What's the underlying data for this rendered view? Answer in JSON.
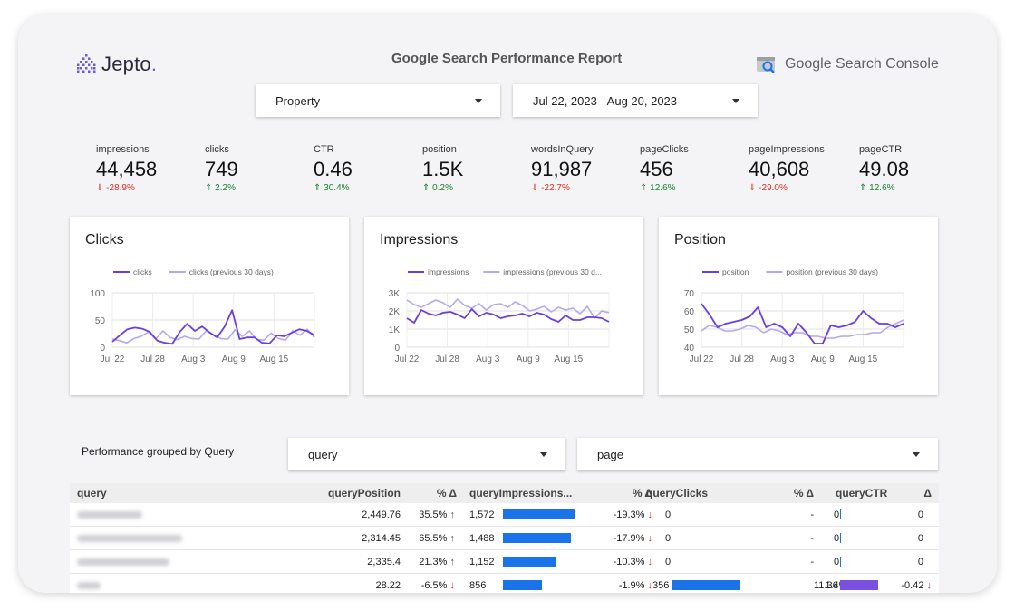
{
  "header": {
    "brand": "Jepto",
    "title": "Google Search Performance Report",
    "gsc_label": "Google Search Console"
  },
  "filters": {
    "property": "Property",
    "date_range": "Jul 22, 2023 - Aug 20, 2023",
    "group_by_label": "Performance grouped by Query",
    "dimension1": "query",
    "dimension2": "page"
  },
  "kpis": [
    {
      "label": "impressions",
      "value": "44,458",
      "delta": "-28.9%",
      "dir": "down"
    },
    {
      "label": "clicks",
      "value": "749",
      "delta": "2.2%",
      "dir": "up"
    },
    {
      "label": "CTR",
      "value": "0.46",
      "delta": "30.4%",
      "dir": "up"
    },
    {
      "label": "position",
      "value": "1.5K",
      "delta": "0.2%",
      "dir": "up"
    },
    {
      "label": "wordsInQuery",
      "value": "91,987",
      "delta": "-22.7%",
      "dir": "down"
    },
    {
      "label": "pageClicks",
      "value": "456",
      "delta": "12.6%",
      "dir": "up"
    },
    {
      "label": "pageImpressions",
      "value": "40,608",
      "delta": "-29.0%",
      "dir": "down"
    },
    {
      "label": "pageCTR",
      "value": "49.08",
      "delta": "12.6%",
      "dir": "up"
    }
  ],
  "colors": {
    "current": "#6a3de8",
    "previous": "#b4a7f5",
    "bar_blue": "#1a73e8",
    "bar_purple": "#7b4fe0",
    "down": "#d93025",
    "up": "#188038"
  },
  "chart_data": [
    {
      "type": "line",
      "title": "Clicks",
      "x_ticks": [
        "Jul 22",
        "Jul 28",
        "Aug 3",
        "Aug 9",
        "Aug 15"
      ],
      "y_ticks": [
        "100",
        "50",
        "0"
      ],
      "ylim": [
        0,
        100
      ],
      "series": [
        {
          "name": "clicks",
          "values": [
            10,
            22,
            33,
            36,
            34,
            28,
            12,
            8,
            6,
            28,
            43,
            30,
            38,
            27,
            18,
            38,
            68,
            15,
            18,
            18,
            8,
            7,
            22,
            20,
            27,
            33,
            30,
            22
          ]
        },
        {
          "name": "clicks (previous 30 days)",
          "values": [
            15,
            12,
            8,
            16,
            20,
            28,
            15,
            30,
            18,
            14,
            20,
            16,
            15,
            30,
            23,
            16,
            15,
            32,
            20,
            30,
            14,
            13,
            26,
            16,
            13,
            30,
            22,
            33,
            18
          ]
        }
      ]
    },
    {
      "type": "line",
      "title": "Impressions",
      "x_ticks": [
        "Jul 22",
        "Jul 28",
        "Aug 3",
        "Aug 9",
        "Aug 15"
      ],
      "y_ticks": [
        "3K",
        "2K",
        "1K",
        "0"
      ],
      "ylim": [
        0,
        3000
      ],
      "series": [
        {
          "name": "impressions",
          "values": [
            1600,
            1350,
            2050,
            1850,
            1750,
            1900,
            1950,
            1800,
            1600,
            2100,
            1700,
            1900,
            1800,
            1600,
            1700,
            1750,
            1850,
            1700,
            1900,
            1800,
            1550,
            1400,
            1750,
            1500,
            1500,
            1650,
            1650,
            1600,
            1400
          ]
        },
        {
          "name": "impressions (previous 30 d...",
          "values": [
            2600,
            2350,
            2200,
            2400,
            2600,
            2450,
            2200,
            2650,
            2300,
            2150,
            2400,
            2050,
            2350,
            2400,
            2200,
            2500,
            2300,
            2000,
            2100,
            2250,
            1950,
            2200,
            2050,
            2150,
            1850,
            2250,
            1600,
            2000,
            1900
          ]
        }
      ]
    },
    {
      "type": "line",
      "title": "Position",
      "x_ticks": [
        "Jul 22",
        "Jul 28",
        "Aug 3",
        "Aug 9",
        "Aug 15"
      ],
      "y_ticks": [
        "70",
        "60",
        "50",
        "40"
      ],
      "ylim": [
        40,
        70
      ],
      "series": [
        {
          "name": "position",
          "values": [
            64,
            58,
            51,
            53,
            54,
            55,
            57,
            62,
            51,
            53,
            51,
            46,
            53,
            48,
            42,
            42,
            52,
            51,
            52,
            54,
            60,
            56,
            53,
            53,
            51,
            53
          ]
        },
        {
          "name": "position (previous 30 days)",
          "values": [
            49,
            52,
            51,
            49,
            49,
            50,
            52,
            51,
            48,
            50,
            49,
            47,
            48,
            48,
            46,
            46,
            45,
            45,
            46,
            46,
            47,
            47,
            48,
            48,
            51,
            53,
            55
          ]
        }
      ]
    }
  ],
  "table": {
    "columns": [
      "query",
      "queryPosition",
      "% Δ",
      "queryImpressions...",
      "% Δ",
      "queryClicks",
      "% Δ",
      "queryCTR",
      "Δ"
    ],
    "rows": [
      {
        "position": "2,449.76",
        "pos_delta": "35.5%",
        "pos_dir": "up",
        "impressions": "1,572",
        "imp_frac": 1.0,
        "imp_delta": "-19.3%",
        "clicks": "0",
        "clk_frac": 0,
        "clk_delta": "-",
        "ctr": "0",
        "ctr_frac": 0,
        "ctr_delta": "0",
        "ctr_dir": ""
      },
      {
        "position": "2,314.45",
        "pos_delta": "65.5%",
        "pos_dir": "up",
        "impressions": "1,488",
        "imp_frac": 0.95,
        "imp_delta": "-17.9%",
        "clicks": "0",
        "clk_frac": 0,
        "clk_delta": "-",
        "ctr": "0",
        "ctr_frac": 0,
        "ctr_delta": "0",
        "ctr_dir": ""
      },
      {
        "position": "2,335.4",
        "pos_delta": "21.3%",
        "pos_dir": "up",
        "impressions": "1,152",
        "imp_frac": 0.73,
        "imp_delta": "-10.3%",
        "clicks": "0",
        "clk_frac": 0,
        "clk_delta": "-",
        "ctr": "0",
        "ctr_frac": 0,
        "ctr_delta": "0",
        "ctr_dir": ""
      },
      {
        "position": "28.22",
        "pos_delta": "-6.5%",
        "pos_dir": "down",
        "impressions": "856",
        "imp_frac": 0.54,
        "imp_delta": "-1.9%",
        "clicks": "356",
        "clk_frac": 1.0,
        "clk_delta": "1.4%",
        "ctr": "11.36",
        "ctr_frac": 1.0,
        "ctr_delta": "-0.42",
        "ctr_dir": "down"
      }
    ]
  }
}
